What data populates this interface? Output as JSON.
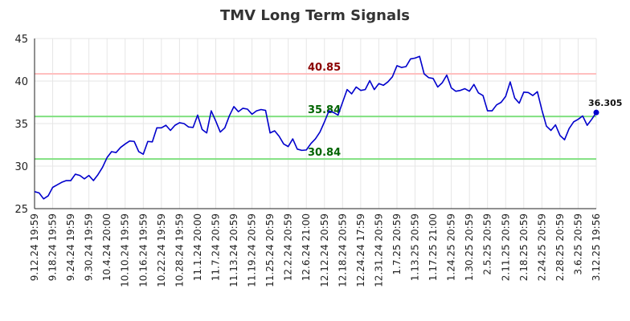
{
  "chart_data": {
    "type": "line",
    "title": "TMV Long Term Signals",
    "xlabel": "",
    "ylabel": "",
    "ylim": [
      25,
      45
    ],
    "yticks": [
      25,
      30,
      35,
      40,
      45
    ],
    "grid": true,
    "x_tick_labels": [
      "9.12.24 19:59",
      "9.18.24 19:59",
      "9.24.24 19:59",
      "9.30.24 19:59",
      "10.4.24 20:00",
      "10.10.24 19:59",
      "10.16.24 19:59",
      "10.22.24 19:59",
      "10.28.24 19:59",
      "11.1.24 20:00",
      "11.7.24 20:59",
      "11.13.24 20:59",
      "11.19.24 20:59",
      "11.25.24 20:59",
      "12.2.24 20:59",
      "12.6.24 21:00",
      "12.12.24 20:59",
      "12.18.24 20:59",
      "12.24.24 17:59",
      "12.31.24 20:59",
      "1.7.25 20:59",
      "1.13.25 20:59",
      "1.17.25 21:00",
      "1.24.25 20:59",
      "1.30.25 20:59",
      "2.5.25 20:59",
      "2.11.25 20:59",
      "2.18.25 20:59",
      "2.24.25 20:59",
      "2.28.25 20:59",
      "3.6.25 20:59",
      "3.12.25 19:56"
    ],
    "values": [
      27.0,
      26.85,
      26.15,
      26.5,
      27.5,
      27.8,
      28.1,
      28.3,
      28.3,
      29.05,
      28.9,
      28.5,
      28.9,
      28.3,
      29.0,
      29.85,
      31.0,
      31.7,
      31.6,
      32.2,
      32.6,
      32.95,
      32.9,
      31.7,
      31.4,
      32.9,
      32.85,
      34.5,
      34.5,
      34.8,
      34.2,
      34.8,
      35.1,
      35.0,
      34.6,
      34.55,
      36.0,
      34.3,
      33.9,
      36.5,
      35.3,
      34.0,
      34.5,
      35.9,
      37.0,
      36.4,
      36.8,
      36.7,
      36.1,
      36.5,
      36.65,
      36.55,
      33.9,
      34.15,
      33.5,
      32.6,
      32.3,
      33.2,
      32.0,
      31.85,
      31.9,
      32.65,
      33.2,
      34.0,
      35.2,
      36.5,
      36.3,
      36.0,
      37.5,
      39.0,
      38.5,
      39.3,
      38.9,
      39.0,
      40.05,
      39.0,
      39.7,
      39.5,
      39.9,
      40.5,
      41.8,
      41.6,
      41.7,
      42.6,
      42.7,
      42.9,
      40.85,
      40.4,
      40.3,
      39.3,
      39.8,
      40.7,
      39.2,
      38.8,
      38.9,
      39.1,
      38.8,
      39.6,
      38.6,
      38.3,
      36.5,
      36.5,
      37.2,
      37.5,
      38.2,
      39.9,
      38.0,
      37.4,
      38.7,
      38.65,
      38.3,
      38.75,
      36.6,
      34.7,
      34.2,
      34.85,
      33.6,
      33.1,
      34.4,
      35.2,
      35.5,
      35.9,
      34.8,
      35.5,
      36.305
    ],
    "reference_lines": [
      {
        "value": 40.85,
        "label": "40.85",
        "line_color": "#ffbfbf",
        "label_color": "#8b0000"
      },
      {
        "value": 35.84,
        "label": "35.84",
        "line_color": "#80e080",
        "label_color": "#006400"
      },
      {
        "value": 30.84,
        "label": "30.84",
        "line_color": "#80e080",
        "label_color": "#006400"
      }
    ],
    "last_value_label": "36.305",
    "series_color": "#0000cc"
  }
}
